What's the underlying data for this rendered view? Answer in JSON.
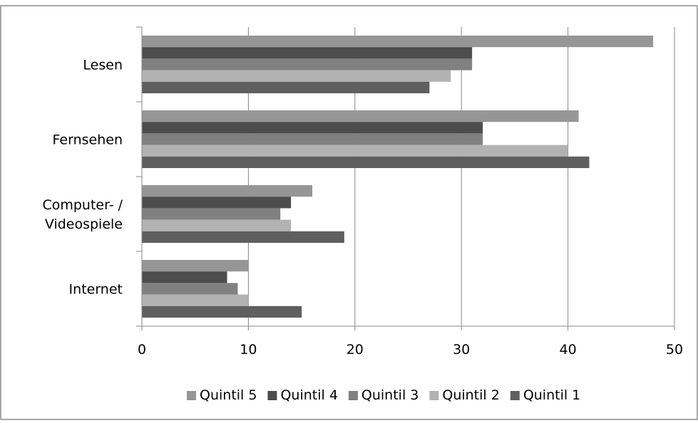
{
  "chart_data": {
    "type": "bar",
    "orientation": "horizontal",
    "title": "",
    "xlabel": "",
    "ylabel": "",
    "categories": [
      "Lesen",
      "Fernsehen",
      "Computer- / Videospiele",
      "Internet"
    ],
    "category_lines": [
      [
        "Lesen"
      ],
      [
        "Fernsehen"
      ],
      [
        "Computer- /",
        "Videospiele"
      ],
      [
        "Internet"
      ]
    ],
    "xlim": [
      0,
      50
    ],
    "xticks": [
      "0",
      "10",
      "20",
      "30",
      "40",
      "50"
    ],
    "grid": true,
    "legend_position": "bottom",
    "series": [
      {
        "name": "Quintil 5",
        "color": "#969696",
        "values": [
          48,
          41,
          16,
          10
        ]
      },
      {
        "name": "Quintil 4",
        "color": "#4d4d4d",
        "values": [
          31,
          32,
          14,
          8
        ]
      },
      {
        "name": "Quintil 3",
        "color": "#808080",
        "values": [
          31,
          32,
          13,
          9
        ]
      },
      {
        "name": "Quintil 2",
        "color": "#b2b2b2",
        "values": [
          29,
          40,
          14,
          10
        ]
      },
      {
        "name": "Quintil 1",
        "color": "#5f5f5f",
        "values": [
          27,
          42,
          19,
          15
        ]
      }
    ]
  }
}
